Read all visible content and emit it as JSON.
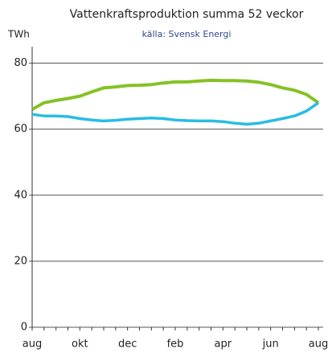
{
  "chart_data": {
    "type": "line",
    "title": "Vattenkraftsproduktion summa 52 veckor",
    "subtitle": "källa: Svensk Energi",
    "y_label": "TWh",
    "categories": [
      "aug",
      null,
      null,
      null,
      "okt",
      null,
      null,
      null,
      "dec",
      null,
      null,
      null,
      "feb",
      null,
      null,
      null,
      "apr",
      null,
      null,
      null,
      "jun",
      null,
      null,
      null,
      "aug"
    ],
    "series": [
      {
        "color": "#84c225",
        "values": [
          66,
          68,
          68.7,
          69.3,
          70,
          71.3,
          72.5,
          72.8,
          73.2,
          73.3,
          73.5,
          74,
          74.3,
          74.3,
          74.6,
          74.8,
          74.7,
          74.7,
          74.6,
          74.2,
          73.5,
          72.5,
          71.8,
          70.5,
          68
        ]
      },
      {
        "color": "#27bde2",
        "values": [
          64.5,
          64,
          64,
          63.8,
          63.2,
          62.8,
          62.5,
          62.7,
          63,
          63.2,
          63.4,
          63.2,
          62.8,
          62.6,
          62.5,
          62.5,
          62.3,
          61.8,
          61.5,
          61.8,
          62.5,
          63.2,
          64,
          65.5,
          68
        ]
      }
    ],
    "ylim": [
      0,
      85
    ],
    "yticks": [
      0,
      20,
      40,
      60,
      80
    ],
    "grid": true
  }
}
